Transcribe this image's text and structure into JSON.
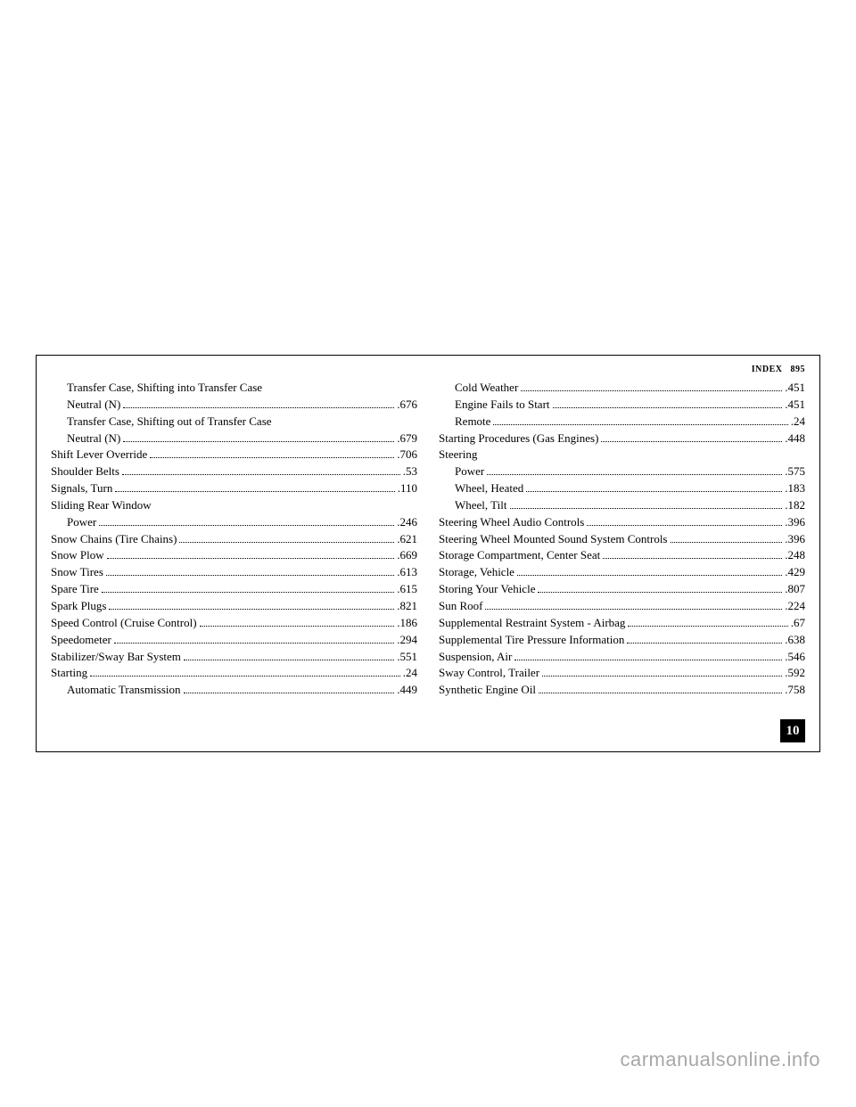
{
  "header": {
    "section": "INDEX",
    "page": "895"
  },
  "tab": "10",
  "watermark": "carmanualsonline.info",
  "left": [
    {
      "label": "Transfer Case, Shifting into Transfer Case",
      "page": "",
      "indent": 1,
      "nodots": true
    },
    {
      "label": "Neutral (N)",
      "page": ".676",
      "indent": 1
    },
    {
      "label": "Transfer Case, Shifting out of Transfer Case",
      "page": "",
      "indent": 1,
      "nodots": true
    },
    {
      "label": "Neutral (N)",
      "page": ".679",
      "indent": 1
    },
    {
      "label": "Shift Lever Override",
      "page": ".706",
      "indent": 0
    },
    {
      "label": "Shoulder Belts",
      "page": ".53",
      "indent": 0
    },
    {
      "label": "Signals, Turn",
      "page": ".110",
      "indent": 0
    },
    {
      "label": "Sliding Rear Window",
      "page": "",
      "indent": 0,
      "nodots": true
    },
    {
      "label": "Power",
      "page": ".246",
      "indent": 1
    },
    {
      "label": "Snow Chains (Tire Chains)",
      "page": ".621",
      "indent": 0
    },
    {
      "label": "Snow Plow",
      "page": ".669",
      "indent": 0
    },
    {
      "label": "Snow Tires",
      "page": ".613",
      "indent": 0
    },
    {
      "label": "Spare Tire",
      "page": ".615",
      "indent": 0
    },
    {
      "label": "Spark Plugs",
      "page": ".821",
      "indent": 0
    },
    {
      "label": "Speed Control (Cruise Control)",
      "page": ".186",
      "indent": 0
    },
    {
      "label": "Speedometer",
      "page": ".294",
      "indent": 0
    },
    {
      "label": "Stabilizer/Sway Bar System",
      "page": ".551",
      "indent": 0
    },
    {
      "label": "Starting",
      "page": ".24",
      "indent": 0
    },
    {
      "label": "Automatic Transmission",
      "page": ".449",
      "indent": 1
    }
  ],
  "right": [
    {
      "label": "Cold Weather",
      "page": ".451",
      "indent": 1
    },
    {
      "label": "Engine Fails to Start",
      "page": ".451",
      "indent": 1
    },
    {
      "label": "Remote",
      "page": ".24",
      "indent": 1
    },
    {
      "label": "Starting Procedures (Gas Engines)",
      "page": ".448",
      "indent": 0
    },
    {
      "label": "Steering",
      "page": "",
      "indent": 0,
      "nodots": true
    },
    {
      "label": "Power",
      "page": ".575",
      "indent": 1
    },
    {
      "label": "Wheel, Heated",
      "page": ".183",
      "indent": 1
    },
    {
      "label": "Wheel, Tilt",
      "page": ".182",
      "indent": 1
    },
    {
      "label": "Steering Wheel Audio Controls",
      "page": ".396",
      "indent": 0
    },
    {
      "label": "Steering Wheel Mounted Sound System Controls",
      "page": ".396",
      "indent": 0
    },
    {
      "label": "Storage Compartment, Center Seat",
      "page": ".248",
      "indent": 0
    },
    {
      "label": "Storage, Vehicle",
      "page": ".429",
      "indent": 0
    },
    {
      "label": "Storing Your Vehicle",
      "page": ".807",
      "indent": 0
    },
    {
      "label": "Sun Roof",
      "page": ".224",
      "indent": 0
    },
    {
      "label": "Supplemental Restraint System - Airbag",
      "page": ".67",
      "indent": 0
    },
    {
      "label": "Supplemental Tire Pressure Information",
      "page": ".638",
      "indent": 0
    },
    {
      "label": "Suspension, Air",
      "page": ".546",
      "indent": 0
    },
    {
      "label": "Sway Control, Trailer",
      "page": ".592",
      "indent": 0
    },
    {
      "label": "Synthetic Engine Oil",
      "page": ".758",
      "indent": 0
    }
  ]
}
